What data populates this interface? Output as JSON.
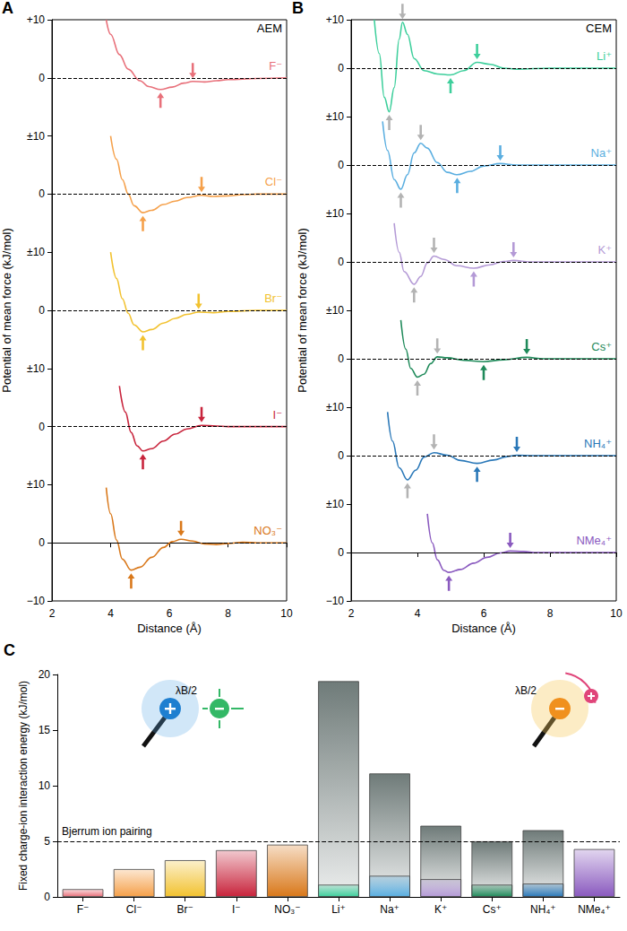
{
  "chart_data": [
    {
      "type": "line",
      "panel": "A",
      "label": "AEM",
      "x_label": "Distance (Å)",
      "y_label": "Potential of mean force (kJ/mol)",
      "xlim": [
        2,
        10
      ],
      "xticks": [
        2,
        4,
        6,
        8,
        10
      ],
      "ylim": [
        -10,
        10
      ],
      "reference_line": 0,
      "series": [
        {
          "name": "F⁻",
          "color": "#e8707a",
          "x": [
            3.85,
            4.0,
            4.3,
            4.6,
            5.0,
            5.3,
            5.7,
            6.1,
            6.5,
            6.8,
            7.2,
            7.6,
            8.0,
            9.0,
            10.0
          ],
          "values": [
            10,
            7.5,
            4,
            1.5,
            -0.5,
            -1.5,
            -2.0,
            -1.6,
            -0.9,
            -0.6,
            -0.7,
            -0.5,
            -0.3,
            -0.1,
            0
          ],
          "yticks": [
            {
              "value": -10,
              "label": "±10"
            },
            0,
            {
              "value": 10,
              "label": "+10"
            }
          ],
          "markers": [
            {
              "x": 5.7,
              "y": -2.0,
              "direction": "up"
            },
            {
              "x": 6.8,
              "y": -0.6,
              "direction": "down"
            }
          ]
        },
        {
          "name": "Cl⁻",
          "color": "#f5a04a",
          "x": [
            4.0,
            4.2,
            4.4,
            4.6,
            4.8,
            5.1,
            5.4,
            5.8,
            6.2,
            6.6,
            7.1,
            7.5,
            8.0,
            8.5,
            9.0,
            10.0
          ],
          "values": [
            10,
            6,
            2.5,
            0,
            -2,
            -3.2,
            -2.8,
            -1.8,
            -1.2,
            -0.6,
            -0.2,
            -0.4,
            -0.3,
            -0.1,
            0,
            0
          ],
          "yticks": [
            {
              "value": -10,
              "label": "±10"
            },
            0
          ],
          "markers": [
            {
              "x": 5.1,
              "y": -3.2,
              "direction": "up"
            },
            {
              "x": 7.1,
              "y": -0.2,
              "direction": "down"
            }
          ]
        },
        {
          "name": "Br⁻",
          "color": "#f2c230",
          "x": [
            4.0,
            4.2,
            4.4,
            4.6,
            4.8,
            5.1,
            5.4,
            5.8,
            6.2,
            6.6,
            7.0,
            7.5,
            8.0,
            9.0,
            10.0
          ],
          "values": [
            10,
            5.5,
            2,
            -0.5,
            -2.5,
            -3.7,
            -3.3,
            -2.2,
            -1.4,
            -0.7,
            -0.3,
            -0.4,
            -0.2,
            0,
            0
          ],
          "yticks": [
            {
              "value": -10,
              "label": "±10"
            },
            0
          ],
          "markers": [
            {
              "x": 5.1,
              "y": -3.7,
              "direction": "up"
            },
            {
              "x": 7.0,
              "y": -0.3,
              "direction": "down"
            }
          ]
        },
        {
          "name": "I⁻",
          "color": "#c8243c",
          "x": [
            4.3,
            4.5,
            4.7,
            4.9,
            5.1,
            5.4,
            5.8,
            6.2,
            6.6,
            7.1,
            7.6,
            8.0,
            9.0,
            10.0
          ],
          "values": [
            7,
            2.5,
            -1,
            -3.3,
            -4.2,
            -3.8,
            -2.5,
            -1.3,
            -0.4,
            0.2,
            0.1,
            0,
            0,
            0
          ],
          "yticks": [
            {
              "value": -10,
              "label": "±10"
            },
            0
          ],
          "markers": [
            {
              "x": 5.1,
              "y": -4.2,
              "direction": "up"
            },
            {
              "x": 7.1,
              "y": 0.2,
              "direction": "down"
            }
          ]
        },
        {
          "name": "NO₃⁻",
          "color": "#d9781a",
          "x": [
            3.85,
            4.0,
            4.2,
            4.4,
            4.7,
            5.0,
            5.4,
            5.8,
            6.1,
            6.4,
            6.8,
            7.2,
            7.6,
            8.0,
            8.5,
            9.0,
            10.0
          ],
          "values": [
            9.5,
            5,
            0.5,
            -2.8,
            -4.7,
            -4.2,
            -2.5,
            -0.8,
            0.2,
            0.6,
            0.3,
            -0.2,
            -0.3,
            -0.1,
            0.1,
            0,
            0
          ],
          "yticks": [
            {
              "value": -10,
              "label": "−10"
            },
            0
          ],
          "markers": [
            {
              "x": 4.7,
              "y": -4.7,
              "direction": "up"
            },
            {
              "x": 6.4,
              "y": 0.6,
              "direction": "down"
            }
          ]
        }
      ]
    },
    {
      "type": "line",
      "panel": "B",
      "label": "CEM",
      "x_label": "Distance (Å)",
      "y_label": "Potential of mean force (kJ/mol)",
      "xlim": [
        2,
        10
      ],
      "xticks": [
        2,
        4,
        6,
        8,
        10
      ],
      "ylim": [
        -10,
        10
      ],
      "reference_line": 0,
      "series": [
        {
          "name": "Li⁺",
          "color": "#3ecf9c",
          "x": [
            2.7,
            2.85,
            3.0,
            3.15,
            3.3,
            3.45,
            3.55,
            3.7,
            3.9,
            4.2,
            4.6,
            5.0,
            5.4,
            5.8,
            6.2,
            6.6,
            7.0,
            8.0,
            9.0,
            10.0
          ],
          "values": [
            10,
            3,
            -6,
            -9,
            -4,
            6,
            9.5,
            7,
            2,
            -0.5,
            -1.2,
            -1.4,
            -0.5,
            1.2,
            0.8,
            0,
            -0.2,
            0,
            0,
            0
          ],
          "yticks": [
            {
              "value": -10,
              "label": "±10"
            },
            0,
            {
              "value": 10,
              "label": "+10"
            }
          ],
          "markers": [
            {
              "x": 3.15,
              "y": -9,
              "direction": "up",
              "color": "#b3b3b3"
            },
            {
              "x": 3.55,
              "y": 9.5,
              "direction": "down",
              "color": "#b3b3b3"
            },
            {
              "x": 5.0,
              "y": -1.4,
              "direction": "up"
            },
            {
              "x": 5.8,
              "y": 1.2,
              "direction": "down"
            }
          ]
        },
        {
          "name": "Na⁺",
          "color": "#5aaee0",
          "x": [
            2.95,
            3.1,
            3.3,
            3.5,
            3.7,
            3.9,
            4.1,
            4.3,
            4.6,
            4.9,
            5.2,
            5.6,
            6.0,
            6.5,
            7.0,
            8.0,
            9.0,
            10.0
          ],
          "values": [
            9,
            3,
            -3,
            -5,
            -2,
            2.5,
            4.5,
            3.5,
            0.5,
            -1.5,
            -2,
            -1.3,
            -0.2,
            0.3,
            0,
            0,
            0,
            0
          ],
          "yticks": [
            {
              "value": -10,
              "label": "±10"
            },
            0
          ],
          "markers": [
            {
              "x": 3.5,
              "y": -5,
              "direction": "up",
              "color": "#b3b3b3"
            },
            {
              "x": 4.1,
              "y": 4.5,
              "direction": "down",
              "color": "#b3b3b3"
            },
            {
              "x": 5.2,
              "y": -2,
              "direction": "up"
            },
            {
              "x": 6.5,
              "y": 0.3,
              "direction": "down"
            }
          ]
        },
        {
          "name": "K⁺",
          "color": "#b49ad6",
          "x": [
            3.3,
            3.45,
            3.6,
            3.9,
            4.1,
            4.3,
            4.5,
            4.8,
            5.2,
            5.7,
            6.2,
            6.6,
            6.9,
            7.4,
            8.0,
            9.0,
            10.0
          ],
          "values": [
            8,
            2,
            -2,
            -4.6,
            -3,
            -0.2,
            1.2,
            0.5,
            -0.8,
            -1.3,
            -0.6,
            0.1,
            0.3,
            0,
            0,
            0,
            0
          ],
          "yticks": [
            {
              "value": -10,
              "label": "±10"
            },
            0
          ],
          "markers": [
            {
              "x": 3.9,
              "y": -4.6,
              "direction": "up",
              "color": "#b3b3b3"
            },
            {
              "x": 4.5,
              "y": 1.2,
              "direction": "down",
              "color": "#b3b3b3"
            },
            {
              "x": 5.7,
              "y": -1.3,
              "direction": "up"
            },
            {
              "x": 6.9,
              "y": 0.3,
              "direction": "down"
            }
          ]
        },
        {
          "name": "Cs⁺",
          "color": "#1f8a5a",
          "x": [
            3.5,
            3.65,
            3.8,
            4.0,
            4.2,
            4.4,
            4.6,
            4.9,
            5.4,
            6.0,
            6.6,
            7.3,
            7.8,
            8.5,
            9.0,
            10.0
          ],
          "values": [
            8,
            2,
            -2,
            -3.8,
            -3.2,
            -1,
            0.4,
            0.2,
            -0.3,
            -0.6,
            -0.2,
            0.3,
            0,
            0,
            0,
            0
          ],
          "yticks": [
            {
              "value": -10,
              "label": "±10"
            },
            0
          ],
          "markers": [
            {
              "x": 4.0,
              "y": -3.8,
              "direction": "up",
              "color": "#b3b3b3"
            },
            {
              "x": 4.6,
              "y": 0.4,
              "direction": "down",
              "color": "#b3b3b3"
            },
            {
              "x": 6.0,
              "y": -0.6,
              "direction": "up"
            },
            {
              "x": 7.3,
              "y": 0.3,
              "direction": "down"
            }
          ]
        },
        {
          "name": "NH₄⁺",
          "color": "#2a78b8",
          "x": [
            3.1,
            3.25,
            3.45,
            3.7,
            3.95,
            4.2,
            4.5,
            4.9,
            5.3,
            5.8,
            6.3,
            6.7,
            7.0,
            7.5,
            8.0,
            9.0,
            10.0
          ],
          "values": [
            9,
            3,
            -2.5,
            -5,
            -3,
            -0.3,
            0.6,
            0.1,
            -1,
            -1.6,
            -0.9,
            -0.2,
            0.1,
            0,
            0,
            0,
            0
          ],
          "yticks": [
            {
              "value": -10,
              "label": "±10"
            },
            0
          ],
          "markers": [
            {
              "x": 3.7,
              "y": -5,
              "direction": "up",
              "color": "#b3b3b3"
            },
            {
              "x": 4.5,
              "y": 0.6,
              "direction": "down",
              "color": "#b3b3b3"
            },
            {
              "x": 5.8,
              "y": -1.6,
              "direction": "up"
            },
            {
              "x": 7.0,
              "y": 0.1,
              "direction": "down"
            }
          ]
        },
        {
          "name": "NMe₄⁺",
          "color": "#8a5abf",
          "x": [
            4.3,
            4.45,
            4.6,
            4.8,
            4.95,
            5.3,
            5.7,
            6.1,
            6.5,
            6.8,
            7.2,
            7.6,
            8.0,
            9.0,
            10.0
          ],
          "values": [
            8,
            2,
            -1.5,
            -3.7,
            -4.1,
            -3.5,
            -2.2,
            -1,
            -0.1,
            0.3,
            0.2,
            0,
            0,
            0,
            0
          ],
          "yticks": [
            {
              "value": -10,
              "label": "−10"
            },
            0
          ],
          "markers": [
            {
              "x": 4.95,
              "y": -4.1,
              "direction": "up"
            },
            {
              "x": 6.8,
              "y": 0.3,
              "direction": "down"
            }
          ]
        }
      ]
    },
    {
      "type": "bar",
      "panel": "C",
      "y_label": "Fixed charge-ion interaction energy (kJ/mol)",
      "categories": [
        "F⁻",
        "Cl⁻",
        "Br⁻",
        "I⁻",
        "NO₃⁻",
        "Li⁺",
        "Na⁺",
        "K⁺",
        "Cs⁺",
        "NH₄⁺",
        "NMe₄⁺"
      ],
      "ylim": [
        0,
        20
      ],
      "yticks": [
        0,
        5,
        10,
        15,
        20
      ],
      "reference_line": 5,
      "reference_label": "Bjerrum ion pairing",
      "annotations": [
        "λB/2",
        "λB/2"
      ],
      "series": [
        {
          "color": "#6f7b79",
          "values": [
            null,
            null,
            null,
            null,
            null,
            19.4,
            11.1,
            6.4,
            5.0,
            6.0,
            null
          ]
        },
        {
          "colors": [
            "#e8707a",
            "#f5a04a",
            "#f2c230",
            "#c8243c",
            "#d9781a",
            "#3ecf9c",
            "#5aaee0",
            "#b49ad6",
            "#1f8a5a",
            "#2a78b8",
            "#8a5abf"
          ],
          "values": [
            0.7,
            2.5,
            3.3,
            4.2,
            4.7,
            1.1,
            1.9,
            1.6,
            1.1,
            1.2,
            4.3
          ]
        }
      ]
    }
  ]
}
